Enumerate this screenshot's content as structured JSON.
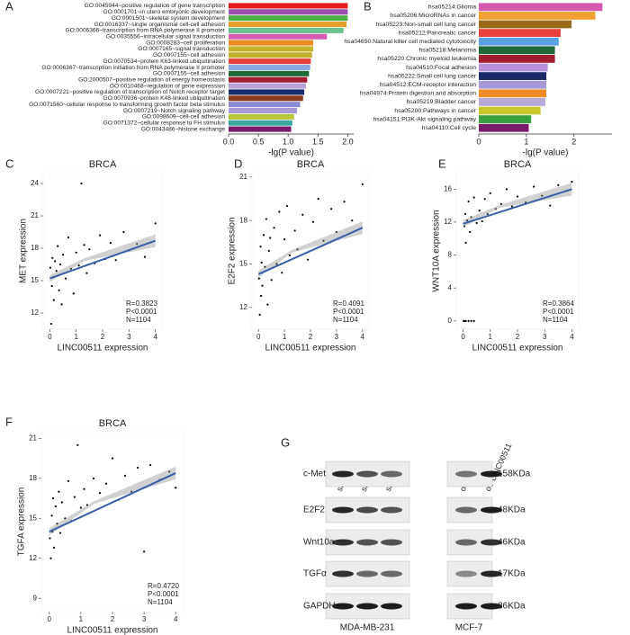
{
  "chart_data": [
    {
      "type": "hbar",
      "panel": "A",
      "xlabel": "-lg(P value)",
      "categories": [
        "GO:0045944~positive regulation of gene transcription",
        "GO:0001701~in utero embryonic development",
        "GO:0001501~skeletal system development",
        "GO:0016337~single organismal cell-cell adhesion",
        "GO:0006366~transcription from RNA polymerase II promoter",
        "GO:0035556~intracellular signal transduction",
        "GO:0008283~cell proliferation",
        "GO:0007165~signal transduction",
        "GO:0007155~cell adhesion",
        "GO:0070534~protein K63-linked ubiquitination",
        "GO:0006367~transcription initiation from RNA polymerase II promoter",
        "GO:0007155~cell adhesion",
        "GO:2000507~positive regulation of energy homeostasis",
        "GO:0010468~regulation of gene expression",
        "GO:0007221~positive regulation of transcription of Notch receptor target",
        "GO:0070936~protein K48-linked ubiquitination",
        "GO:0071560~cellular response to transforming growth factor beta stimulus",
        "GO:0007219~Notch signaling pathway",
        "GO:0098609~cell-cell adhesion",
        "GO:0071372~cellular response to FH stimulus",
        "GO:0043486~histone exchange"
      ],
      "values": [
        2.0,
        2.0,
        2.0,
        1.98,
        1.93,
        1.65,
        1.42,
        1.42,
        1.4,
        1.38,
        1.37,
        1.35,
        1.32,
        1.3,
        1.27,
        1.25,
        1.2,
        1.15,
        1.1,
        1.07,
        1.05
      ],
      "colors": [
        "#e41a1c",
        "#9b4fb0",
        "#4daf4a",
        "#e5a02a",
        "#6cc28e",
        "#d65ab0",
        "#f08a24",
        "#c8b42a",
        "#c2b030",
        "#e8403a",
        "#8aa8e0",
        "#1e6b3a",
        "#a01e2e",
        "#b8a0d8",
        "#1a2a6a",
        "#8b3a1a",
        "#8a8ad0",
        "#a898d8",
        "#b8c83a",
        "#3aa8a0",
        "#7a1a6a"
      ],
      "xlim": [
        0,
        2.1
      ],
      "xticks": [
        {
          "value": 0,
          "label": "0.0"
        },
        0.5,
        {
          "value": 1,
          "label": "1.0"
        },
        1.5,
        {
          "value": 2,
          "label": "2.0"
        }
      ]
    },
    {
      "type": "hbar",
      "panel": "B",
      "xlabel": "-lg(P value)",
      "categories": [
        "hsa05214:Glioma",
        "hsa05206:MicroRNAs in cancer",
        "hsa05223:Non-small cell lung cancer",
        "hsa05212:Pancreatic cancer",
        "hsa04650:Natural killer cell mediated cytotoxicity",
        "hsa05218:Melanoma",
        "hsa05220:Chronic myeloid leukemia",
        "hsa04510:Focal adhesion",
        "hsa05222:Small cell lung cancer",
        "hsa04512:ECM-receptor interaction",
        "hsa04974:Protein digestion and absorption",
        "hsa05219:Bladder cancer",
        "hsa05200:Pathways in cancer",
        "hsa04151:PI3K-Akt signaling pathway",
        "hsa04110:Cell cycle"
      ],
      "values": [
        2.6,
        2.45,
        1.95,
        1.72,
        1.68,
        1.6,
        1.6,
        1.45,
        1.42,
        1.42,
        1.42,
        1.4,
        1.3,
        1.1,
        1.05
      ],
      "colors": [
        "#d65ab0",
        "#f0a030",
        "#9a6a1a",
        "#e8403a",
        "#5aa0e0",
        "#1e6b3a",
        "#a01e2e",
        "#b890d8",
        "#1a2a6a",
        "#a898d8",
        "#f08a24",
        "#b8a8d8",
        "#c8c82a",
        "#3aa040",
        "#7a1a6a"
      ],
      "xlim": [
        0,
        2.8
      ],
      "xticks": [
        0,
        1,
        2
      ]
    },
    {
      "type": "scatter",
      "panel": "C",
      "title": "BRCA",
      "xlabel": "LINC00511 expression",
      "ylabel": "MET expression",
      "annotations": [
        "R=0.3823",
        "P<0.0001",
        "N=1104"
      ],
      "x": [
        0.02,
        0.05,
        0.08,
        0.1,
        0.12,
        0.15,
        0.2,
        0.25,
        0.3,
        0.35,
        0.4,
        0.45,
        0.5,
        0.6,
        0.7,
        0.8,
        0.9,
        1.0,
        1.1,
        1.2,
        1.3,
        1.4,
        1.5,
        1.7,
        1.9,
        2.1,
        2.3,
        2.5,
        2.8,
        3.0,
        3.3,
        3.6,
        4.0
      ],
      "y": [
        16.2,
        11.0,
        14.5,
        17.1,
        15.3,
        13.2,
        16.8,
        15.9,
        18.2,
        14.1,
        16.5,
        12.8,
        17.4,
        15.2,
        19.0,
        16.1,
        13.8,
        17.6,
        16.4,
        24.0,
        18.3,
        15.7,
        17.9,
        16.6,
        19.2,
        17.0,
        18.5,
        16.9,
        19.5,
        17.8,
        18.4,
        17.2,
        20.3
      ],
      "trend": {
        "x": [
          0,
          4
        ],
        "y": [
          15.2,
          18.7
        ]
      },
      "xlim": [
        -0.25,
        4.25
      ],
      "ylim": [
        10.5,
        25
      ],
      "xticks": [
        0,
        1,
        2,
        3,
        4
      ],
      "yticks": [
        12,
        15,
        18,
        21,
        24
      ]
    },
    {
      "type": "scatter",
      "panel": "D",
      "title": "BRCA",
      "xlabel": "LINC00511 expression",
      "ylabel": "E2F2 expression",
      "annotations": [
        "R=0.4091",
        "P<0.0001",
        "N=1104"
      ],
      "x": [
        0.02,
        0.05,
        0.08,
        0.1,
        0.12,
        0.15,
        0.2,
        0.25,
        0.3,
        0.35,
        0.4,
        0.45,
        0.5,
        0.6,
        0.7,
        0.8,
        0.9,
        1.0,
        1.1,
        1.2,
        1.4,
        1.5,
        1.7,
        1.9,
        2.1,
        2.3,
        2.5,
        2.8,
        3.0,
        3.3,
        3.6,
        4.0
      ],
      "y": [
        14.0,
        11.5,
        16.2,
        12.8,
        15.1,
        13.5,
        17.0,
        14.8,
        18.1,
        12.2,
        15.9,
        16.8,
        13.9,
        17.5,
        15.0,
        18.6,
        14.4,
        16.7,
        19.0,
        15.6,
        17.3,
        16.0,
        18.4,
        15.3,
        17.9,
        19.5,
        16.6,
        18.8,
        17.2,
        19.3,
        18.0,
        20.5
      ],
      "trend": {
        "x": [
          0,
          4
        ],
        "y": [
          14.3,
          17.5
        ]
      },
      "xlim": [
        -0.25,
        4.25
      ],
      "ylim": [
        10.5,
        21.3
      ],
      "xticks": [
        0,
        1,
        2,
        3,
        4
      ],
      "yticks": [
        12,
        15,
        18,
        21
      ]
    },
    {
      "type": "scatter",
      "panel": "E",
      "title": "BRCA",
      "xlabel": "LINC00511 expression",
      "ylabel": "WNT10A expression",
      "annotations": [
        "R=0.3864",
        "P<0.0001",
        "N=1104"
      ],
      "x": [
        0.02,
        0.05,
        0.1,
        0.2,
        0.3,
        0.4,
        0.05,
        0.08,
        0.1,
        0.15,
        0.2,
        0.25,
        0.3,
        0.4,
        0.5,
        0.6,
        0.7,
        0.8,
        0.9,
        1.0,
        1.2,
        1.4,
        1.6,
        1.8,
        2.0,
        2.3,
        2.6,
        2.9,
        3.2,
        3.5,
        3.8,
        4.0
      ],
      "y": [
        0,
        0,
        0,
        0,
        0,
        0,
        11.5,
        13.0,
        9.5,
        12.2,
        14.5,
        10.8,
        12.6,
        15.0,
        11.9,
        13.4,
        12.1,
        14.8,
        13.0,
        15.5,
        13.6,
        14.2,
        16.0,
        13.9,
        15.1,
        14.4,
        16.3,
        15.2,
        14.0,
        16.5,
        15.8,
        16.9
      ],
      "trend": {
        "x": [
          0,
          4
        ],
        "y": [
          11.8,
          16.0
        ]
      },
      "xlim": [
        -0.25,
        4.25
      ],
      "ylim": [
        -1,
        18
      ],
      "xticks": [
        0,
        1,
        2,
        3,
        4
      ],
      "yticks": [
        0,
        4,
        8,
        12,
        16
      ]
    },
    {
      "type": "scatter",
      "panel": "F",
      "title": "BRCA",
      "xlabel": "LINC00511 expression",
      "ylabel": "TGFA expression",
      "annotations": [
        "R=0.4720",
        "P<0.0001",
        "N=1104"
      ],
      "x": [
        0.02,
        0.05,
        0.08,
        0.1,
        0.12,
        0.15,
        0.2,
        0.25,
        0.3,
        0.35,
        0.4,
        0.5,
        0.6,
        0.7,
        0.8,
        0.9,
        1.0,
        1.1,
        1.2,
        1.4,
        1.6,
        1.8,
        2.0,
        2.2,
        2.4,
        2.6,
        2.8,
        3.0,
        3.2,
        3.5,
        3.8,
        4.0
      ],
      "y": [
        13.5,
        12.0,
        15.2,
        14.0,
        16.5,
        12.8,
        15.9,
        14.6,
        17.0,
        13.9,
        16.2,
        15.0,
        17.8,
        14.8,
        16.6,
        20.5,
        15.8,
        17.2,
        16.0,
        18.0,
        16.9,
        17.6,
        19.5,
        16.4,
        18.2,
        17.0,
        18.8,
        12.5,
        19.0,
        17.9,
        18.5,
        17.3
      ],
      "trend": {
        "x": [
          0,
          4
        ],
        "y": [
          14.0,
          18.4
        ]
      },
      "xlim": [
        -0.25,
        4.25
      ],
      "ylim": [
        8,
        21.5
      ],
      "xticks": [
        0,
        1,
        2,
        3,
        4
      ],
      "yticks": [
        9,
        12,
        15,
        18,
        21
      ]
    }
  ],
  "blot": {
    "panel": "G",
    "lanes": [
      "si-NC",
      "si-RNA1",
      "si-RNA2",
      "oe-NC",
      "oe-LINC00511"
    ],
    "proteins": [
      "c-Met",
      "E2F2",
      "Wnt10a",
      "TGFα",
      "GAPDH"
    ],
    "sizes": [
      "158KDa",
      "48KDa",
      "46KDa",
      "17KDa",
      "36KDa"
    ],
    "cell_lines": [
      "MDA-MB-231",
      "MCF-7"
    ]
  }
}
